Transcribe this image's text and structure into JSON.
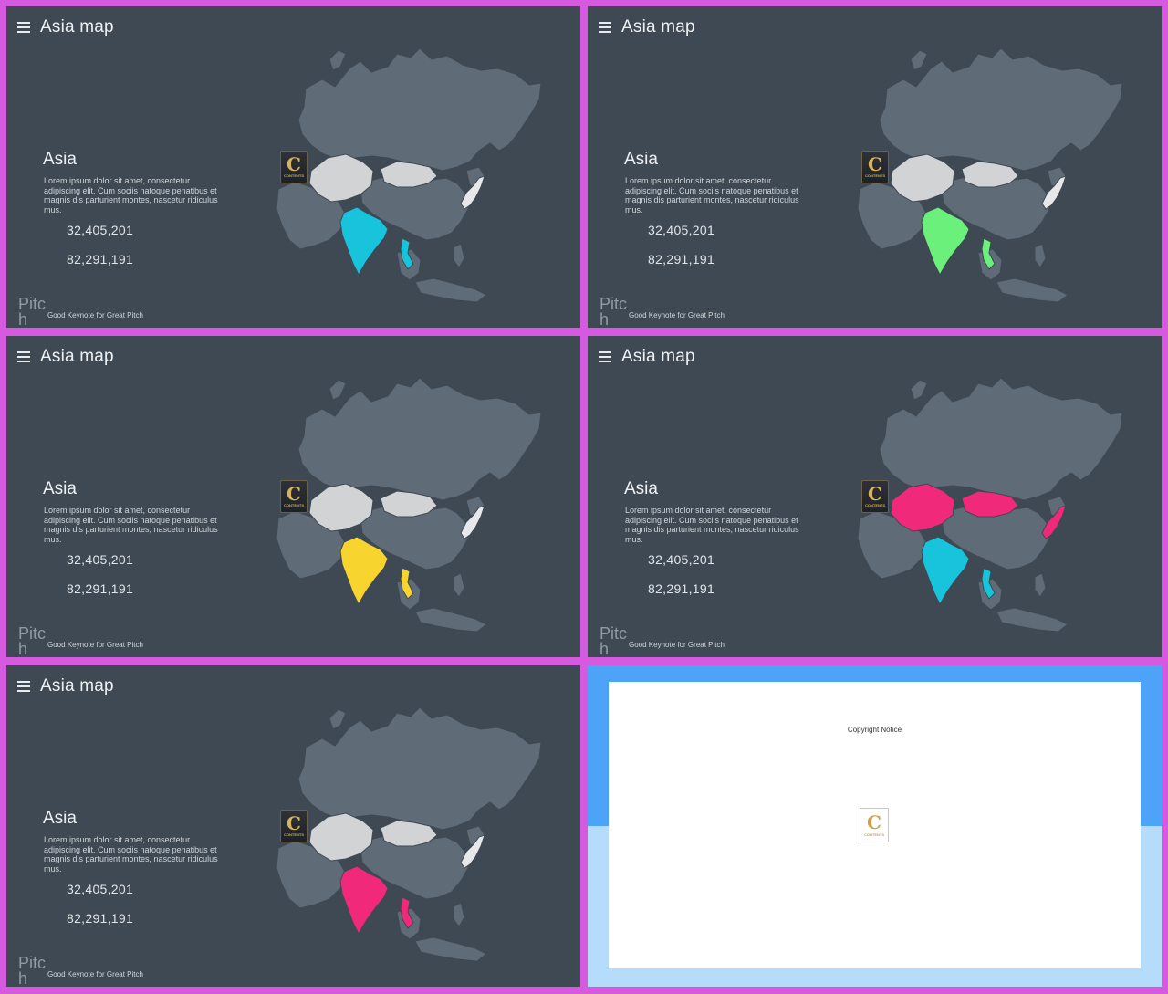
{
  "slides": [
    {
      "title": "Asia map",
      "heading": "Asia",
      "body": "Lorem ipsum dolor sit amet, consectetur adipiscing elit. Cum sociis natoque penatibus et magnis dis parturient montes, nascetur ridiculus mus.",
      "stat1": "32,405,201",
      "stat2": "82,291,191",
      "brand": "Pitch",
      "tagline": "Good Keynote for Great Pitch",
      "logo_letter": "C",
      "logo_text": "CONTENTS",
      "colors": {
        "central": "#d2d3d5",
        "india": "#18c3dc",
        "vietnam": "#18c3dc",
        "japan": "#e6e8ea"
      }
    },
    {
      "title": "Asia map",
      "heading": "Asia",
      "body": "Lorem ipsum dolor sit amet, consectetur adipiscing elit. Cum sociis natoque penatibus et magnis dis parturient montes, nascetur ridiculus mus.",
      "stat1": "32,405,201",
      "stat2": "82,291,191",
      "brand": "Pitch",
      "tagline": "Good Keynote for Great Pitch",
      "logo_letter": "C",
      "logo_text": "CONTENTS",
      "colors": {
        "central": "#d2d3d5",
        "india": "#6cf07c",
        "vietnam": "#6cf07c",
        "japan": "#e6e8ea"
      }
    },
    {
      "title": "Asia map",
      "heading": "Asia",
      "body": "Lorem ipsum dolor sit amet, consectetur adipiscing elit. Cum sociis natoque penatibus et magnis dis parturient montes, nascetur ridiculus mus.",
      "stat1": "32,405,201",
      "stat2": "82,291,191",
      "brand": "Pitch",
      "tagline": "Good Keynote for Great Pitch",
      "logo_letter": "C",
      "logo_text": "CONTENTS",
      "colors": {
        "central": "#d2d3d5",
        "india": "#f8d42e",
        "vietnam": "#f8d42e",
        "japan": "#e6e8ea"
      }
    },
    {
      "title": "Asia map",
      "heading": "Asia",
      "body": "Lorem ipsum dolor sit amet, consectetur adipiscing elit. Cum sociis natoque penatibus et magnis dis parturient montes, nascetur ridiculus mus.",
      "stat1": "32,405,201",
      "stat2": "82,291,191",
      "brand": "Pitch",
      "tagline": "Good Keynote for Great Pitch",
      "logo_letter": "C",
      "logo_text": "CONTENTS",
      "colors": {
        "central": "#f0297a",
        "india": "#18c3dc",
        "vietnam": "#18c3dc",
        "japan": "#f0297a"
      }
    },
    {
      "title": "Asia map",
      "heading": "Asia",
      "body": "Lorem ipsum dolor sit amet, consectetur adipiscing elit. Cum sociis natoque penatibus et magnis dis parturient montes, nascetur ridiculus mus.",
      "stat1": "32,405,201",
      "stat2": "82,291,191",
      "brand": "Pitch",
      "tagline": "Good Keynote for Great Pitch",
      "logo_letter": "C",
      "logo_text": "CONTENTS",
      "colors": {
        "central": "#d2d3d5",
        "india": "#f0297a",
        "vietnam": "#f0297a",
        "japan": "#e6e8ea"
      }
    }
  ],
  "notice": {
    "copyright": "Copyright Notice",
    "logo_letter": "C",
    "logo_text": "CONTENTS"
  },
  "map_base_color": "#5f6b76",
  "map_border_color": "#3f4953"
}
